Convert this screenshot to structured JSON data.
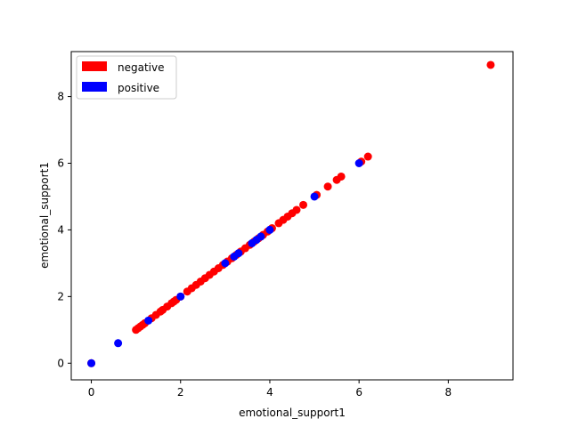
{
  "chart_data": {
    "type": "scatter",
    "xlabel": "emotional_support1",
    "ylabel": "emotional_support1",
    "xlim": [
      -0.45,
      9.45
    ],
    "ylim": [
      -0.5,
      9.35
    ],
    "xticks": [
      0,
      2,
      4,
      6,
      8
    ],
    "yticks": [
      0,
      2,
      4,
      6,
      8
    ],
    "grid": false,
    "legend_position": "top-left",
    "series": [
      {
        "name": "negative",
        "color": "#ff0000",
        "points": [
          [
            0,
            0
          ],
          [
            1.0,
            1.0
          ],
          [
            1.05,
            1.05
          ],
          [
            1.1,
            1.1
          ],
          [
            1.15,
            1.15
          ],
          [
            1.2,
            1.2
          ],
          [
            1.35,
            1.35
          ],
          [
            1.45,
            1.45
          ],
          [
            1.55,
            1.55
          ],
          [
            1.6,
            1.6
          ],
          [
            1.7,
            1.7
          ],
          [
            1.8,
            1.8
          ],
          [
            1.85,
            1.85
          ],
          [
            1.9,
            1.9
          ],
          [
            2.0,
            2.0
          ],
          [
            2.15,
            2.15
          ],
          [
            2.25,
            2.25
          ],
          [
            2.35,
            2.35
          ],
          [
            2.45,
            2.45
          ],
          [
            2.55,
            2.55
          ],
          [
            2.65,
            2.65
          ],
          [
            2.75,
            2.75
          ],
          [
            2.85,
            2.85
          ],
          [
            2.95,
            2.95
          ],
          [
            3.05,
            3.05
          ],
          [
            3.15,
            3.15
          ],
          [
            3.25,
            3.25
          ],
          [
            3.35,
            3.35
          ],
          [
            3.45,
            3.45
          ],
          [
            3.55,
            3.55
          ],
          [
            3.65,
            3.65
          ],
          [
            3.75,
            3.75
          ],
          [
            3.85,
            3.85
          ],
          [
            3.95,
            3.95
          ],
          [
            4.05,
            4.05
          ],
          [
            4.2,
            4.2
          ],
          [
            4.3,
            4.3
          ],
          [
            4.4,
            4.4
          ],
          [
            4.5,
            4.5
          ],
          [
            4.6,
            4.6
          ],
          [
            4.75,
            4.75
          ],
          [
            5.05,
            5.05
          ],
          [
            5.3,
            5.3
          ],
          [
            5.5,
            5.5
          ],
          [
            5.6,
            5.6
          ],
          [
            6.05,
            6.05
          ],
          [
            6.2,
            6.2
          ],
          [
            8.95,
            8.95
          ]
        ]
      },
      {
        "name": "positive",
        "color": "#0000ff",
        "points": [
          [
            0,
            0
          ],
          [
            0.6,
            0.6
          ],
          [
            1.28,
            1.28
          ],
          [
            2.0,
            2.0
          ],
          [
            3.0,
            3.0
          ],
          [
            3.2,
            3.2
          ],
          [
            3.3,
            3.3
          ],
          [
            3.6,
            3.6
          ],
          [
            3.7,
            3.7
          ],
          [
            3.8,
            3.8
          ],
          [
            4.0,
            4.0
          ],
          [
            5.0,
            5.0
          ],
          [
            6.0,
            6.0
          ]
        ]
      }
    ]
  }
}
